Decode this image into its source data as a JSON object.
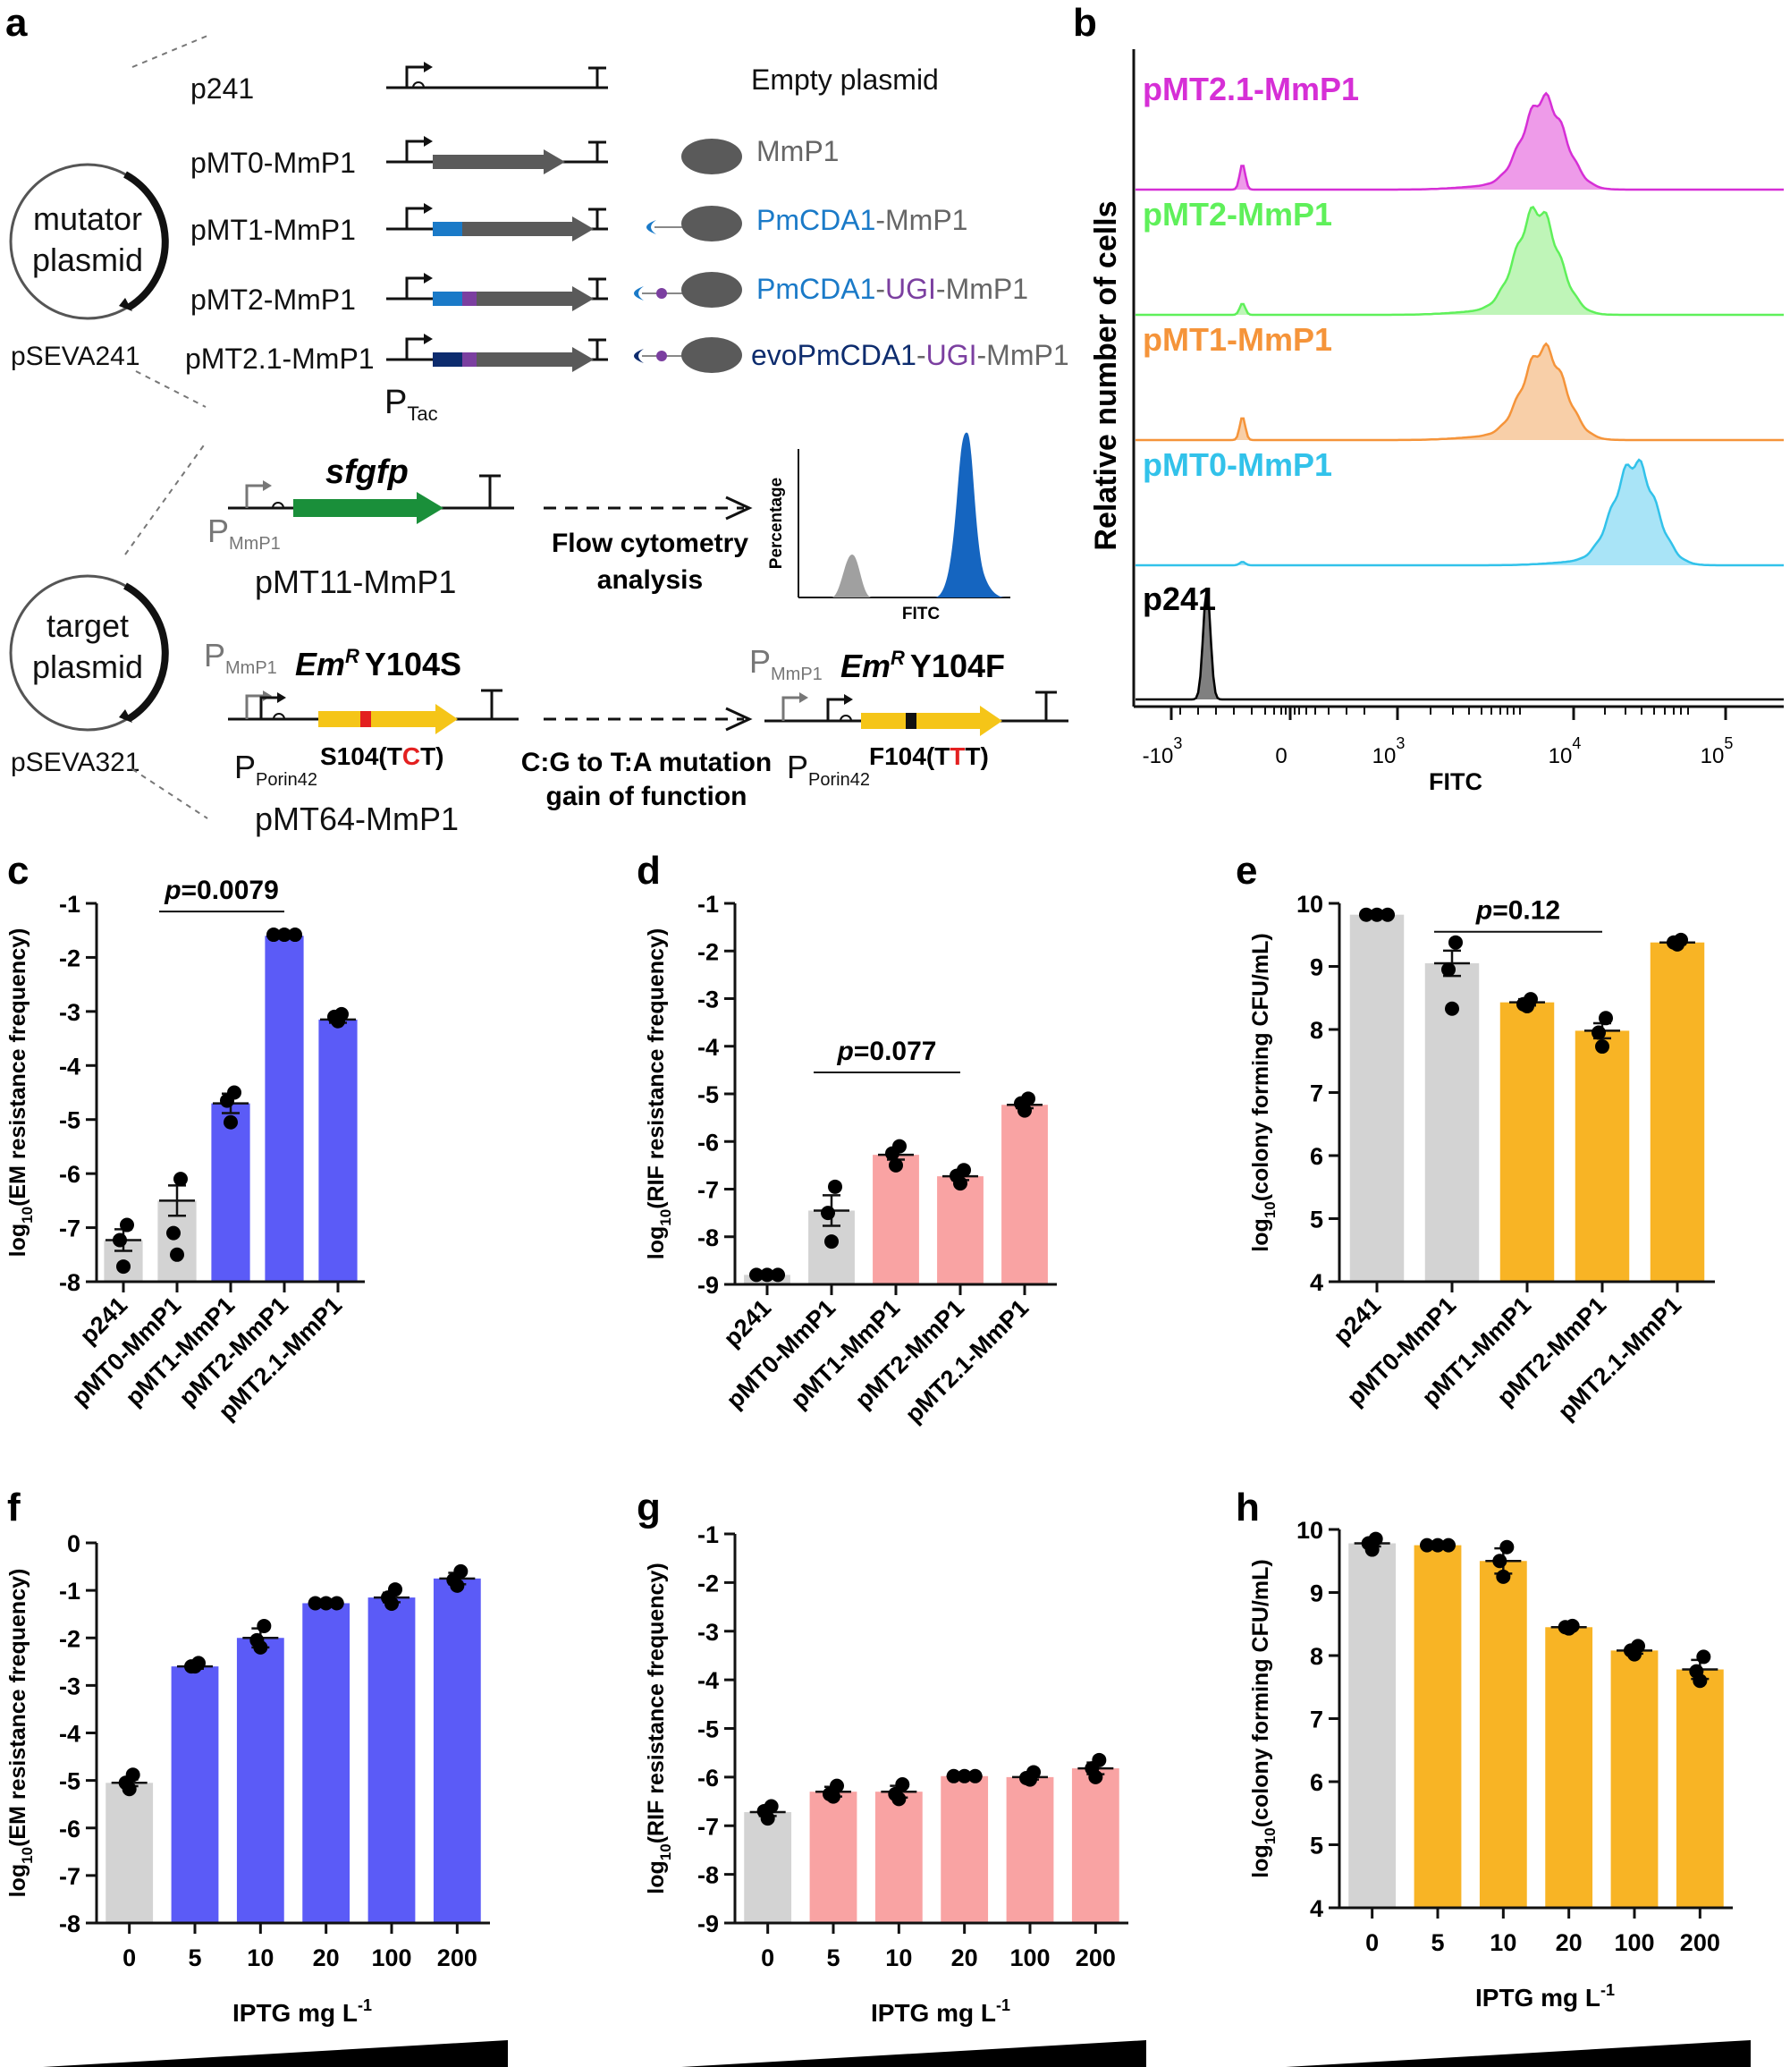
{
  "figure": {
    "panel_labels": {
      "a": "a",
      "b": "b",
      "c": "c",
      "d": "d",
      "e": "e",
      "f": "f",
      "g": "g",
      "h": "h"
    },
    "colors": {
      "grey": "#d3d3d3",
      "blue": "#5b5bf7",
      "pink": "#f9a3a3",
      "orange": "#f8b425",
      "mmp1": "#5a5a5a",
      "pmcda1": "#1a7ac8",
      "evo": "#0d2c6e",
      "ugi": "#7b3fa0",
      "sfgfp": "#1a8f3a",
      "emr": "#f5c518",
      "mut_red": "#e32020"
    }
  },
  "panel_a": {
    "mutator": {
      "circle_label": [
        "mutator",
        "plasmid"
      ],
      "backbone": "pSEVA241",
      "promoter_label": "P",
      "promoter_sub": "Tac",
      "constructs": [
        {
          "name": "p241",
          "protein": "Empty plasmid"
        },
        {
          "name": "pMT0-MmP1",
          "protein_parts": [
            "MmP1"
          ]
        },
        {
          "name": "pMT1-MmP1",
          "protein_parts": [
            "PmCDA1",
            "-MmP1"
          ]
        },
        {
          "name": "pMT2-MmP1",
          "protein_parts": [
            "PmCDA1",
            "-",
            "UGI",
            "-MmP1"
          ]
        },
        {
          "name": "pMT2.1-MmP1",
          "protein_parts": [
            "evoPmCDA1",
            "-",
            "UGI",
            "-MmP1"
          ]
        }
      ]
    },
    "target": {
      "circle_label": [
        "target",
        "plasmid"
      ],
      "backbone": "pSEVA321",
      "gene_sfgfp": "sfgfp",
      "p_mmp1": "P",
      "p_mmp1_sub": "MmP1",
      "p_porin": "P",
      "p_porin_sub": "Porin42",
      "plasmid_pmt11": "pMT11-MmP1",
      "plasmid_pmt64": "pMT64-MmP1",
      "flow_text": [
        "Flow cytometry",
        "analysis"
      ],
      "inset_ylabel": "Percentage",
      "inset_xlabel": "FITC",
      "emr_gene": "Em",
      "emr_sup": "R",
      "emr_before": "Y104S",
      "emr_after": "Y104F",
      "codon_before": {
        "pre": "S104(T",
        "mut": "C",
        "post": "T)"
      },
      "codon_after": {
        "pre": "F104(T",
        "mut": "T",
        "post": "T)"
      },
      "mutation_text": [
        "C:G to T:A mutation",
        "gain of function"
      ]
    }
  },
  "panel_b": {
    "ylabel": "Relative number of cells",
    "xlabel": "FITC",
    "xticks": [
      {
        "base": "-10",
        "exp": "3"
      },
      {
        "base": "0",
        "exp": ""
      },
      {
        "base": "10",
        "exp": "3"
      },
      {
        "base": "10",
        "exp": "4"
      },
      {
        "base": "10",
        "exp": "5"
      }
    ],
    "tracks": [
      {
        "name": "pMT2.1-MmP1",
        "color": "#d62fd6",
        "fill": "#ee9be9",
        "peak_pos": 0.63,
        "peak_h": 0.78,
        "small_h": 0.22
      },
      {
        "name": "pMT2-MmP1",
        "color": "#5ff05a",
        "fill": "#bff5b8",
        "peak_pos": 0.62,
        "peak_h": 0.9,
        "small_h": 0.1
      },
      {
        "name": "pMT1-MmP1",
        "color": "#f5943a",
        "fill": "#f8cfa8",
        "peak_pos": 0.63,
        "peak_h": 0.78,
        "small_h": 0.2
      },
      {
        "name": "pMT0-MmP1",
        "color": "#32c2ea",
        "fill": "#a9e4f7",
        "peak_pos": 0.77,
        "peak_h": 0.88,
        "small_h": 0.03
      },
      {
        "name": "p241",
        "color": "#000000",
        "fill": "#808080",
        "peak_pos": 0.11,
        "peak_h": 0.95,
        "small_h": 0
      }
    ]
  },
  "chart_data": [
    {
      "panel": "c",
      "type": "bar",
      "ylabel": {
        "pre": "log",
        "sub": "10",
        "post": "(EM resistance frequency)"
      },
      "ylim": [
        -8,
        -1
      ],
      "yticks": [
        "-1",
        "-2",
        "-3",
        "-4",
        "-5",
        "-6",
        "-7",
        "-8"
      ],
      "categories": [
        "p241",
        "pMT0-MmP1",
        "pMT1-MmP1",
        "pMT2-MmP1",
        "pMT2.1-MmP1"
      ],
      "values": [
        -7.23,
        -6.5,
        -4.7,
        -1.6,
        -3.15
      ],
      "errors": [
        0.2,
        0.28,
        0.18,
        0.03,
        0.06
      ],
      "points": [
        [
          -6.95,
          -7.23,
          -7.72
        ],
        [
          -6.1,
          -7.1,
          -7.5
        ],
        [
          -4.5,
          -4.65,
          -5.05
        ],
        [
          -1.58,
          -1.58,
          -1.58
        ],
        [
          -3.05,
          -3.1,
          -3.18
        ]
      ],
      "bar_colors": [
        "grey",
        "grey",
        "blue",
        "blue",
        "blue"
      ],
      "pvalue": {
        "label": "p",
        "value": "=0.0079",
        "from": 1,
        "to": 3,
        "y": -1.15
      },
      "rotated_ticks": true
    },
    {
      "panel": "d",
      "type": "bar",
      "ylabel": {
        "pre": "log",
        "sub": "10",
        "post": "(RIF resistance frequency)"
      },
      "ylim": [
        -9,
        -1
      ],
      "yticks": [
        "-1",
        "-2",
        "-3",
        "-4",
        "-5",
        "-6",
        "-7",
        "-8",
        "-9"
      ],
      "categories": [
        "p241",
        "pMT0-MmP1",
        "pMT1-MmP1",
        "pMT2-MmP1",
        "pMT2.1-MmP1"
      ],
      "values": [
        -8.8,
        -7.45,
        -6.28,
        -6.73,
        -5.23
      ],
      "errors": [
        0,
        0.32,
        0.1,
        0.08,
        0.07
      ],
      "points": [
        [
          -8.8,
          -8.8,
          -8.8
        ],
        [
          -6.95,
          -7.5,
          -8.1
        ],
        [
          -6.1,
          -6.25,
          -6.5
        ],
        [
          -6.6,
          -6.72,
          -6.88
        ],
        [
          -5.1,
          -5.2,
          -5.35
        ]
      ],
      "bar_colors": [
        "grey",
        "grey",
        "pink",
        "pink",
        "pink"
      ],
      "pvalue": {
        "label": "p",
        "value": "=0.077",
        "from": 1,
        "to": 3,
        "y": -4.55
      },
      "rotated_ticks": true
    },
    {
      "panel": "e",
      "type": "bar",
      "ylabel": {
        "pre": "log",
        "sub": "10",
        "post": "(colony forming CFU/mL)"
      },
      "ylim": [
        4,
        10
      ],
      "yticks": [
        "10",
        "9",
        "8",
        "7",
        "6",
        "5",
        "4"
      ],
      "categories": [
        "p241",
        "pMT0-MmP1",
        "pMT1-MmP1",
        "pMT2-MmP1",
        "pMT2.1-MmP1"
      ],
      "values": [
        9.82,
        9.05,
        8.43,
        7.98,
        9.38
      ],
      "errors": [
        0,
        0.2,
        0.05,
        0.12,
        0.03
      ],
      "points": [
        [
          9.82,
          9.82,
          9.82
        ],
        [
          9.38,
          8.95,
          8.33
        ],
        [
          8.48,
          8.4,
          8.37
        ],
        [
          8.18,
          7.95,
          7.73
        ],
        [
          9.42,
          9.38,
          9.35
        ]
      ],
      "bar_colors": [
        "grey",
        "grey",
        "orange",
        "orange",
        "orange"
      ],
      "pvalue": {
        "label": "p",
        "value": "=0.12",
        "from": 1,
        "to": 3,
        "y": 9.55
      },
      "rotated_ticks": true
    },
    {
      "panel": "f",
      "type": "bar",
      "ylabel": {
        "pre": "log",
        "sub": "10",
        "post": "(EM resistance frequency)"
      },
      "ylim": [
        -8,
        0
      ],
      "yticks": [
        "0",
        "-1",
        "-2",
        "-3",
        "-4",
        "-5",
        "-6",
        "-7",
        "-8"
      ],
      "xlabel": {
        "pre": "IPTG mg L",
        "sup": "-1"
      },
      "categories": [
        "0",
        "5",
        "10",
        "20",
        "100",
        "200"
      ],
      "values": [
        -5.05,
        -2.6,
        -2.0,
        -1.27,
        -1.15,
        -0.75
      ],
      "errors": [
        0.07,
        0.05,
        0.2,
        0.01,
        0.1,
        0.12
      ],
      "points": [
        [
          -4.88,
          -5.05,
          -5.18
        ],
        [
          -2.53,
          -2.6,
          -2.6
        ],
        [
          -1.75,
          -2.05,
          -2.2
        ],
        [
          -1.27,
          -1.27,
          -1.27
        ],
        [
          -0.98,
          -1.15,
          -1.28
        ],
        [
          -0.6,
          -0.78,
          -0.9
        ]
      ],
      "bar_colors": [
        "grey",
        "blue",
        "blue",
        "blue",
        "blue",
        "blue"
      ],
      "wedge": true
    },
    {
      "panel": "g",
      "type": "bar",
      "ylabel": {
        "pre": "log",
        "sub": "10",
        "post": "(RIF resistance frequency)"
      },
      "ylim": [
        -9,
        -1
      ],
      "yticks": [
        "-1",
        "-2",
        "-3",
        "-4",
        "-5",
        "-6",
        "-7",
        "-8",
        "-9"
      ],
      "xlabel": {
        "pre": "IPTG mg L",
        "sup": "-1"
      },
      "categories": [
        "0",
        "5",
        "10",
        "20",
        "100",
        "200"
      ],
      "values": [
        -6.72,
        -6.3,
        -6.3,
        -5.98,
        -6.0,
        -5.82
      ],
      "errors": [
        0.08,
        0.1,
        0.12,
        0.01,
        0.05,
        0.12
      ],
      "points": [
        [
          -6.6,
          -6.7,
          -6.85
        ],
        [
          -6.18,
          -6.35,
          -6.4
        ],
        [
          -6.15,
          -6.35,
          -6.45
        ],
        [
          -5.98,
          -5.98,
          -5.98
        ],
        [
          -5.9,
          -6.02,
          -6.05
        ],
        [
          -5.65,
          -5.82,
          -6.0
        ]
      ],
      "bar_colors": [
        "grey",
        "pink",
        "pink",
        "pink",
        "pink",
        "pink"
      ],
      "wedge": true
    },
    {
      "panel": "h",
      "type": "bar",
      "ylabel": {
        "pre": "log",
        "sub": "10",
        "post": "(colony forming CFU/mL)"
      },
      "ylim": [
        4,
        10
      ],
      "yticks": [
        "10",
        "9",
        "8",
        "7",
        "6",
        "5",
        "4"
      ],
      "xlabel": {
        "pre": "IPTG mg L",
        "sup": "-1"
      },
      "categories": [
        "0",
        "5",
        "10",
        "20",
        "100",
        "200"
      ],
      "values": [
        9.78,
        9.75,
        9.5,
        8.45,
        8.08,
        7.78
      ],
      "errors": [
        0.05,
        0.01,
        0.2,
        0.02,
        0.05,
        0.15
      ],
      "points": [
        [
          9.85,
          9.78,
          9.68
        ],
        [
          9.75,
          9.75,
          9.75
        ],
        [
          9.72,
          9.5,
          9.25
        ],
        [
          8.47,
          8.45,
          8.43
        ],
        [
          8.15,
          8.08,
          8.02
        ],
        [
          7.98,
          7.75,
          7.6
        ]
      ],
      "bar_colors": [
        "grey",
        "orange",
        "orange",
        "orange",
        "orange",
        "orange"
      ],
      "wedge": true
    }
  ]
}
